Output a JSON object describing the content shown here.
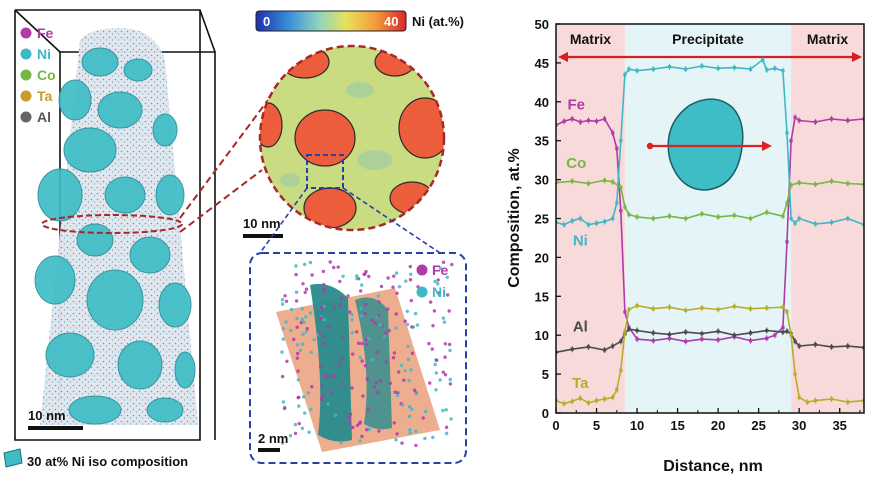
{
  "left_panel": {
    "legend": [
      {
        "label": "Fe",
        "color": "#b03aa8"
      },
      {
        "label": "Ni",
        "color": "#3fb8c4"
      },
      {
        "label": "Co",
        "color": "#76b843"
      },
      {
        "label": "Ta",
        "color": "#c79a2a"
      },
      {
        "label": "Al",
        "color": "#666666"
      }
    ],
    "scale_bar": "10 nm",
    "iso_caption": "30 at% Ni iso composition",
    "iso_color": "#3fbdc6"
  },
  "middle_panel": {
    "colorbar": {
      "min_label": "0",
      "max_label": "40",
      "unit_label": "Ni (at.%)"
    },
    "circle_scale_bar": "10 nm",
    "inset_scale_bar": "2 nm",
    "inset_legend": [
      {
        "label": "Fe",
        "color": "#b03aa8"
      },
      {
        "label": "Ni",
        "color": "#3fb8c4"
      }
    ]
  },
  "chart_data": {
    "type": "line",
    "xlabel": "Distance, nm",
    "ylabel": "Composition, at.%",
    "xlim": [
      0,
      38
    ],
    "ylim": [
      0,
      50
    ],
    "xticks": [
      0,
      5,
      10,
      15,
      20,
      25,
      30,
      35
    ],
    "yticks": [
      0,
      5,
      10,
      15,
      20,
      25,
      30,
      35,
      40,
      45,
      50
    ],
    "grid": false,
    "regions": [
      {
        "label": "Matrix",
        "from": 0,
        "to": 8.5,
        "color": "#f9dada"
      },
      {
        "label": "Precipitate",
        "from": 8.5,
        "to": 29,
        "color": "#e5f4f7"
      },
      {
        "label": "Matrix",
        "from": 29,
        "to": 38,
        "color": "#f9dada"
      }
    ],
    "series": [
      {
        "name": "Fe",
        "color": "#b03aa8",
        "label_at": [
          2.5,
          39
        ],
        "x": [
          0,
          1,
          2,
          3,
          4,
          5,
          6,
          7,
          7.5,
          8,
          8.5,
          9,
          10,
          12,
          14,
          16,
          18,
          20,
          22,
          24,
          26,
          27,
          28,
          28.5,
          29,
          29.5,
          30,
          32,
          34,
          36,
          38
        ],
        "y": [
          37,
          37.5,
          37.8,
          37.4,
          37.6,
          37.5,
          37.8,
          36,
          34,
          26,
          13,
          11,
          9.5,
          9.3,
          9.6,
          9.2,
          9.5,
          9.4,
          9.8,
          9.3,
          9.6,
          10,
          11,
          22,
          35,
          38,
          37.6,
          37.4,
          37.8,
          37.6,
          37.8
        ]
      },
      {
        "name": "Ni",
        "color": "#3fb8c4",
        "label_at": [
          3,
          21.5
        ],
        "x": [
          0,
          1,
          2,
          3,
          4,
          5,
          6,
          7,
          7.5,
          8,
          8.5,
          9,
          10,
          12,
          14,
          16,
          18,
          20,
          22,
          24,
          25.5,
          26,
          27,
          28,
          28.5,
          29,
          29.5,
          30,
          32,
          34,
          36,
          38
        ],
        "y": [
          24.5,
          24.2,
          24.7,
          25,
          24.2,
          24.4,
          24.6,
          25,
          27,
          35,
          43.5,
          44.2,
          44,
          44.2,
          44.5,
          44.2,
          44.6,
          44.3,
          44.4,
          44.2,
          45.4,
          44.1,
          44.3,
          44,
          36,
          25,
          24.4,
          25,
          24.3,
          24.5,
          25,
          24.2
        ]
      },
      {
        "name": "Co",
        "color": "#76b843",
        "label_at": [
          2.5,
          31.5
        ],
        "x": [
          0,
          2,
          4,
          6,
          7,
          8,
          8.5,
          9,
          10,
          12,
          14,
          16,
          18,
          20,
          22,
          24,
          26,
          28,
          28.5,
          29,
          30,
          32,
          34,
          36,
          38
        ],
        "y": [
          29.6,
          29.8,
          29.5,
          29.9,
          29.7,
          29,
          26.5,
          25.5,
          25.2,
          25,
          25.3,
          25,
          25.6,
          25.2,
          25.4,
          25,
          25.8,
          25.3,
          27,
          29.3,
          29.6,
          29.4,
          29.8,
          29.5,
          29.4
        ]
      },
      {
        "name": "Al",
        "color": "#4a4a4a",
        "label_at": [
          3,
          10.5
        ],
        "x": [
          0,
          2,
          4,
          6,
          7,
          8,
          8.5,
          9,
          10,
          12,
          14,
          16,
          18,
          20,
          22,
          24,
          26,
          28,
          28.5,
          29,
          29.5,
          30,
          32,
          34,
          36,
          38
        ],
        "y": [
          7.8,
          8.2,
          8.5,
          8.1,
          8.6,
          9.2,
          10.2,
          10.8,
          10.6,
          10.3,
          10.1,
          10.4,
          10.2,
          10.5,
          10,
          10.3,
          10.6,
          10.4,
          10.5,
          10.2,
          9.2,
          8.6,
          8.8,
          8.5,
          8.6,
          8.4
        ]
      },
      {
        "name": "Ta",
        "color": "#b5ae2a",
        "label_at": [
          3,
          3.2
        ],
        "x": [
          0,
          1,
          2,
          3,
          4,
          5,
          6,
          7,
          7.5,
          8,
          8.5,
          9,
          10,
          12,
          14,
          16,
          18,
          20,
          22,
          24,
          26,
          28,
          28.5,
          29,
          29.5,
          30,
          31,
          32,
          34,
          36,
          38
        ],
        "y": [
          1.6,
          1.2,
          1.5,
          1.9,
          1.3,
          1.6,
          1.8,
          2,
          3,
          5.5,
          10.5,
          13.3,
          13.8,
          13.4,
          13.6,
          13.2,
          13.5,
          13.3,
          13.7,
          13.4,
          13.5,
          13.6,
          13,
          10,
          5,
          2,
          1.4,
          1.6,
          1.8,
          1.4,
          1.6
        ]
      }
    ]
  }
}
